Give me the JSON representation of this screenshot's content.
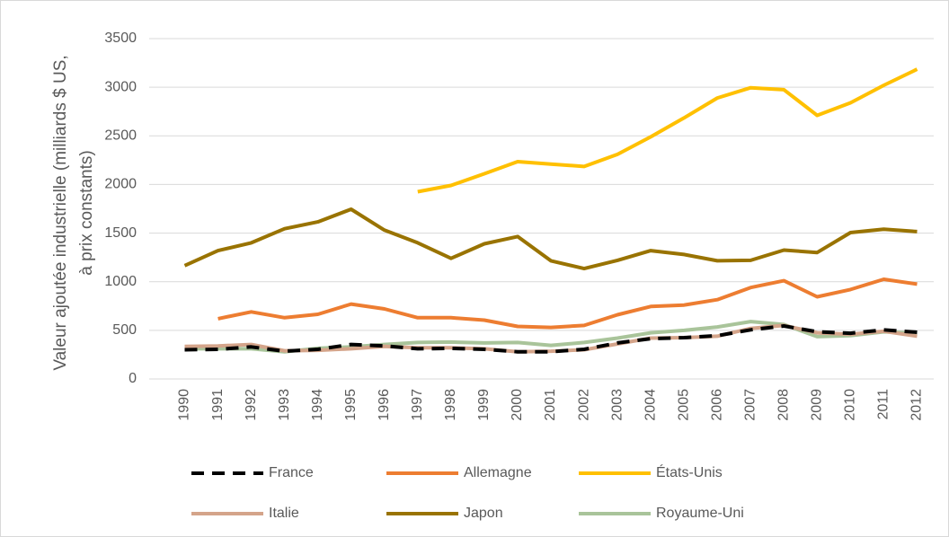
{
  "chart_data": {
    "type": "line",
    "ylabel": [
      "Valeur ajoutée industrielle (milliards $ US,",
      "à prix constants)"
    ],
    "categories": [
      "1990",
      "1991",
      "1992",
      "1993",
      "1994",
      "1995",
      "1996",
      "1997",
      "1998",
      "1999",
      "2000",
      "2001",
      "2002",
      "2003",
      "2004",
      "2005",
      "2006",
      "2007",
      "2008",
      "2009",
      "2010",
      "2011",
      "2012"
    ],
    "ylim": [
      0,
      3500
    ],
    "yticks": [
      0,
      500,
      1000,
      1500,
      2000,
      2500,
      3000,
      3500
    ],
    "grid": true,
    "legend": "bottom",
    "series": [
      {
        "name": "France",
        "color": "#000000",
        "dashed": true,
        "values": [
          300,
          305,
          330,
          285,
          305,
          355,
          340,
          310,
          315,
          305,
          280,
          280,
          305,
          370,
          415,
          425,
          445,
          505,
          545,
          485,
          470,
          505,
          480
        ]
      },
      {
        "name": "Allemagne",
        "color": "#ed7d31",
        "values": [
          null,
          620,
          690,
          630,
          665,
          770,
          720,
          630,
          630,
          605,
          540,
          530,
          550,
          660,
          745,
          760,
          815,
          940,
          1010,
          845,
          920,
          1025,
          975
        ]
      },
      {
        "name": "États-Unis",
        "color": "#ffc000",
        "values": [
          null,
          null,
          null,
          null,
          null,
          null,
          null,
          1925,
          1990,
          2110,
          2235,
          2210,
          2185,
          2310,
          2490,
          2685,
          2890,
          2995,
          2975,
          2710,
          2840,
          3020,
          3185
        ]
      },
      {
        "name": "Italie",
        "color": "#d4a48a",
        "values": [
          335,
          340,
          355,
          290,
          295,
          310,
          335,
          320,
          320,
          310,
          280,
          285,
          300,
          360,
          420,
          425,
          440,
          520,
          550,
          475,
          460,
          490,
          440
        ]
      },
      {
        "name": "Japon",
        "color": "#997300",
        "values": [
          1165,
          1320,
          1400,
          1545,
          1615,
          1745,
          1530,
          1400,
          1240,
          1390,
          1465,
          1215,
          1135,
          1220,
          1320,
          1280,
          1215,
          1220,
          1325,
          1300,
          1505,
          1540,
          1515
        ]
      },
      {
        "name": "Royaume-Uni",
        "color": "#a9c49a",
        "values": [
          310,
          310,
          310,
          280,
          315,
          330,
          355,
          375,
          380,
          370,
          375,
          345,
          375,
          420,
          475,
          500,
          535,
          590,
          560,
          435,
          445,
          485,
          470
        ]
      }
    ]
  }
}
